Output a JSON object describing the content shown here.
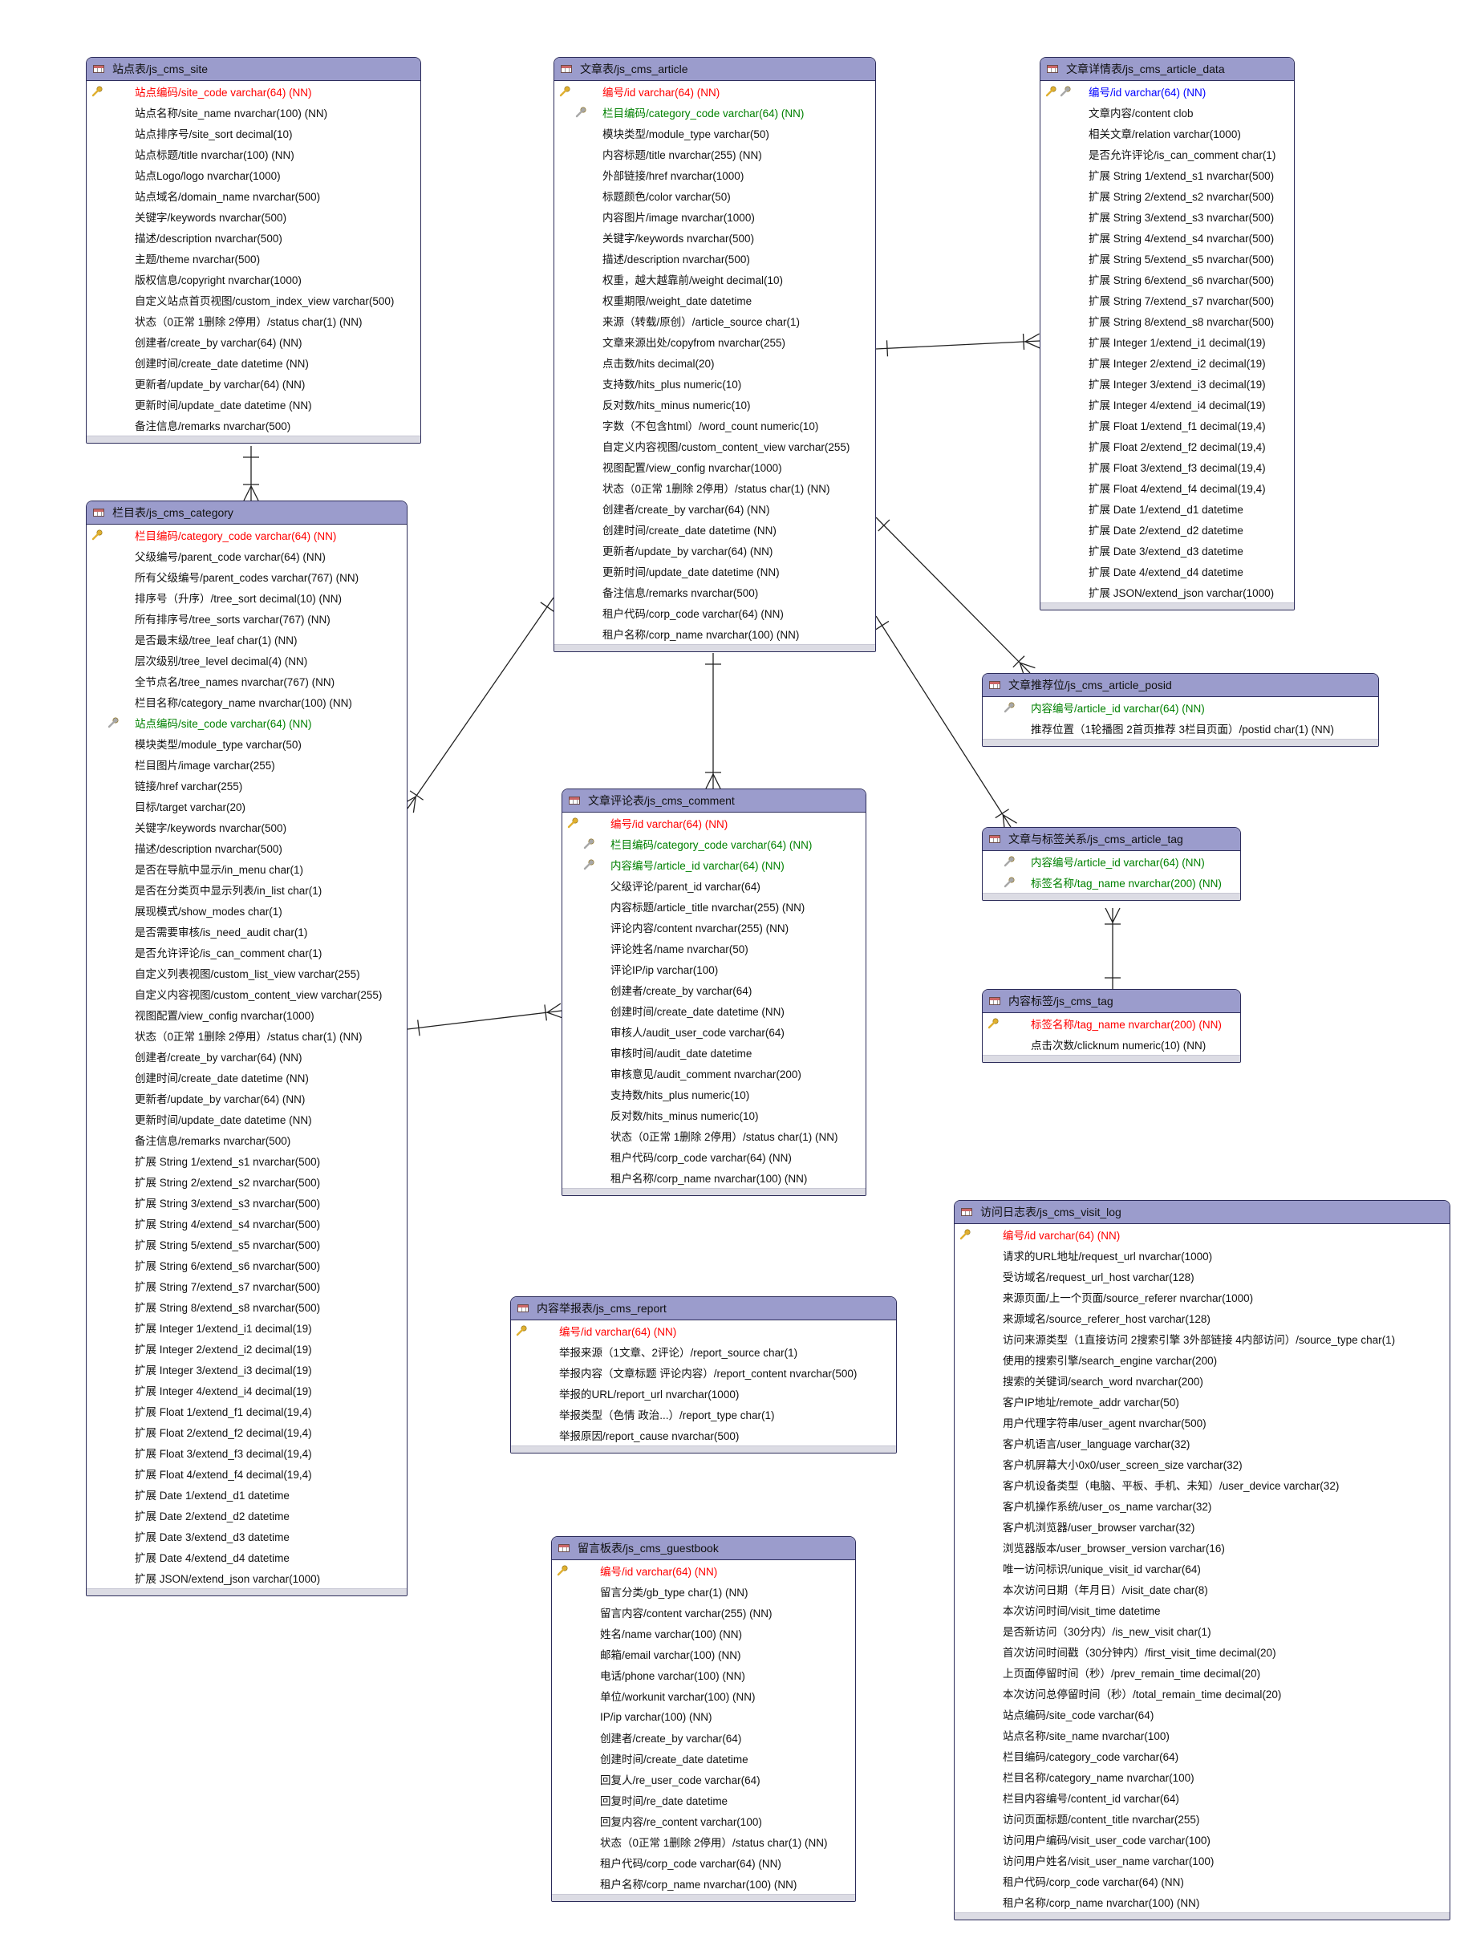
{
  "colors": {
    "header": "#9b9ccc",
    "pk": "#ff0000",
    "fk": "#008000",
    "pkfk": "#0000ff",
    "border": "#2c2c5a"
  },
  "tables": [
    {
      "id": "site",
      "title": "站点表/js_cms_site",
      "rows": [
        {
          "t": "站点编码/site_code varchar(64) (NN)",
          "k": "pk"
        },
        {
          "t": "站点名称/site_name nvarchar(100) (NN)"
        },
        {
          "t": "站点排序号/site_sort decimal(10)"
        },
        {
          "t": "站点标题/title nvarchar(100) (NN)"
        },
        {
          "t": "站点Logo/logo nvarchar(1000)"
        },
        {
          "t": "站点域名/domain_name nvarchar(500)"
        },
        {
          "t": "关键字/keywords nvarchar(500)"
        },
        {
          "t": "描述/description nvarchar(500)"
        },
        {
          "t": "主题/theme nvarchar(500)"
        },
        {
          "t": "版权信息/copyright nvarchar(1000)"
        },
        {
          "t": "自定义站点首页视图/custom_index_view varchar(500)"
        },
        {
          "t": "状态（0正常 1删除 2停用）/status char(1) (NN)"
        },
        {
          "t": "创建者/create_by varchar(64) (NN)"
        },
        {
          "t": "创建时间/create_date datetime (NN)"
        },
        {
          "t": "更新者/update_by varchar(64) (NN)"
        },
        {
          "t": "更新时间/update_date datetime (NN)"
        },
        {
          "t": "备注信息/remarks nvarchar(500)"
        }
      ]
    },
    {
      "id": "category",
      "title": "栏目表/js_cms_category",
      "rows": [
        {
          "t": "栏目编码/category_code varchar(64) (NN)",
          "k": "pk"
        },
        {
          "t": "父级编号/parent_code varchar(64) (NN)"
        },
        {
          "t": "所有父级编号/parent_codes varchar(767) (NN)"
        },
        {
          "t": "排序号（升序）/tree_sort decimal(10) (NN)"
        },
        {
          "t": "所有排序号/tree_sorts varchar(767) (NN)"
        },
        {
          "t": "是否最末级/tree_leaf char(1) (NN)"
        },
        {
          "t": "层次级别/tree_level decimal(4) (NN)"
        },
        {
          "t": "全节点名/tree_names nvarchar(767) (NN)"
        },
        {
          "t": "栏目名称/category_name nvarchar(100) (NN)"
        },
        {
          "t": "站点编码/site_code varchar(64) (NN)",
          "k": "fk"
        },
        {
          "t": "模块类型/module_type varchar(50)"
        },
        {
          "t": "栏目图片/image varchar(255)"
        },
        {
          "t": "链接/href varchar(255)"
        },
        {
          "t": "目标/target varchar(20)"
        },
        {
          "t": "关键字/keywords nvarchar(500)"
        },
        {
          "t": "描述/description nvarchar(500)"
        },
        {
          "t": "是否在导航中显示/in_menu char(1)"
        },
        {
          "t": "是否在分类页中显示列表/in_list char(1)"
        },
        {
          "t": "展现模式/show_modes char(1)"
        },
        {
          "t": "是否需要审核/is_need_audit char(1)"
        },
        {
          "t": "是否允许评论/is_can_comment char(1)"
        },
        {
          "t": "自定义列表视图/custom_list_view varchar(255)"
        },
        {
          "t": "自定义内容视图/custom_content_view varchar(255)"
        },
        {
          "t": "视图配置/view_config nvarchar(1000)"
        },
        {
          "t": "状态（0正常 1删除 2停用）/status char(1) (NN)"
        },
        {
          "t": "创建者/create_by varchar(64) (NN)"
        },
        {
          "t": "创建时间/create_date datetime (NN)"
        },
        {
          "t": "更新者/update_by varchar(64) (NN)"
        },
        {
          "t": "更新时间/update_date datetime (NN)"
        },
        {
          "t": "备注信息/remarks nvarchar(500)"
        },
        {
          "t": "扩展 String 1/extend_s1 nvarchar(500)"
        },
        {
          "t": "扩展 String 2/extend_s2 nvarchar(500)"
        },
        {
          "t": "扩展 String 3/extend_s3 nvarchar(500)"
        },
        {
          "t": "扩展 String 4/extend_s4 nvarchar(500)"
        },
        {
          "t": "扩展 String 5/extend_s5 nvarchar(500)"
        },
        {
          "t": "扩展 String 6/extend_s6 nvarchar(500)"
        },
        {
          "t": "扩展 String 7/extend_s7 nvarchar(500)"
        },
        {
          "t": "扩展 String 8/extend_s8 nvarchar(500)"
        },
        {
          "t": "扩展 Integer 1/extend_i1 decimal(19)"
        },
        {
          "t": "扩展 Integer 2/extend_i2 decimal(19)"
        },
        {
          "t": "扩展 Integer 3/extend_i3 decimal(19)"
        },
        {
          "t": "扩展 Integer 4/extend_i4 decimal(19)"
        },
        {
          "t": "扩展 Float 1/extend_f1 decimal(19,4)"
        },
        {
          "t": "扩展 Float 2/extend_f2 decimal(19,4)"
        },
        {
          "t": "扩展 Float 3/extend_f3 decimal(19,4)"
        },
        {
          "t": "扩展 Float 4/extend_f4 decimal(19,4)"
        },
        {
          "t": "扩展 Date 1/extend_d1 datetime"
        },
        {
          "t": "扩展 Date 2/extend_d2 datetime"
        },
        {
          "t": "扩展 Date 3/extend_d3 datetime"
        },
        {
          "t": "扩展 Date 4/extend_d4 datetime"
        },
        {
          "t": "扩展 JSON/extend_json varchar(1000)"
        }
      ]
    },
    {
      "id": "article",
      "title": "文章表/js_cms_article",
      "rows": [
        {
          "t": "编号/id varchar(64) (NN)",
          "k": "pk"
        },
        {
          "t": "栏目编码/category_code varchar(64) (NN)",
          "k": "fk"
        },
        {
          "t": "模块类型/module_type varchar(50)"
        },
        {
          "t": "内容标题/title nvarchar(255) (NN)"
        },
        {
          "t": "外部链接/href nvarchar(1000)"
        },
        {
          "t": "标题颜色/color varchar(50)"
        },
        {
          "t": "内容图片/image nvarchar(1000)"
        },
        {
          "t": "关键字/keywords nvarchar(500)"
        },
        {
          "t": "描述/description nvarchar(500)"
        },
        {
          "t": "权重，越大越靠前/weight decimal(10)"
        },
        {
          "t": "权重期限/weight_date datetime"
        },
        {
          "t": "来源（转载/原创）/article_source char(1)"
        },
        {
          "t": "文章来源出处/copyfrom nvarchar(255)"
        },
        {
          "t": "点击数/hits decimal(20)"
        },
        {
          "t": "支持数/hits_plus numeric(10)"
        },
        {
          "t": "反对数/hits_minus numeric(10)"
        },
        {
          "t": "字数（不包含html）/word_count numeric(10)"
        },
        {
          "t": "自定义内容视图/custom_content_view varchar(255)"
        },
        {
          "t": "视图配置/view_config nvarchar(1000)"
        },
        {
          "t": "状态（0正常 1删除 2停用）/status char(1) (NN)"
        },
        {
          "t": "创建者/create_by varchar(64) (NN)"
        },
        {
          "t": "创建时间/create_date datetime (NN)"
        },
        {
          "t": "更新者/update_by varchar(64) (NN)"
        },
        {
          "t": "更新时间/update_date datetime (NN)"
        },
        {
          "t": "备注信息/remarks nvarchar(500)"
        },
        {
          "t": "租户代码/corp_code varchar(64) (NN)"
        },
        {
          "t": "租户名称/corp_name nvarchar(100) (NN)"
        }
      ]
    },
    {
      "id": "article_data",
      "title": "文章详情表/js_cms_article_data",
      "rows": [
        {
          "t": "编号/id varchar(64) (NN)",
          "k": "pkfk"
        },
        {
          "t": "文章内容/content clob"
        },
        {
          "t": "相关文章/relation varchar(1000)"
        },
        {
          "t": "是否允许评论/is_can_comment char(1)"
        },
        {
          "t": "扩展 String 1/extend_s1 nvarchar(500)"
        },
        {
          "t": "扩展 String 2/extend_s2 nvarchar(500)"
        },
        {
          "t": "扩展 String 3/extend_s3 nvarchar(500)"
        },
        {
          "t": "扩展 String 4/extend_s4 nvarchar(500)"
        },
        {
          "t": "扩展 String 5/extend_s5 nvarchar(500)"
        },
        {
          "t": "扩展 String 6/extend_s6 nvarchar(500)"
        },
        {
          "t": "扩展 String 7/extend_s7 nvarchar(500)"
        },
        {
          "t": "扩展 String 8/extend_s8 nvarchar(500)"
        },
        {
          "t": "扩展 Integer 1/extend_i1 decimal(19)"
        },
        {
          "t": "扩展 Integer 2/extend_i2 decimal(19)"
        },
        {
          "t": "扩展 Integer 3/extend_i3 decimal(19)"
        },
        {
          "t": "扩展 Integer 4/extend_i4 decimal(19)"
        },
        {
          "t": "扩展 Float 1/extend_f1 decimal(19,4)"
        },
        {
          "t": "扩展 Float 2/extend_f2 decimal(19,4)"
        },
        {
          "t": "扩展 Float 3/extend_f3 decimal(19,4)"
        },
        {
          "t": "扩展 Float 4/extend_f4 decimal(19,4)"
        },
        {
          "t": "扩展 Date 1/extend_d1 datetime"
        },
        {
          "t": "扩展 Date 2/extend_d2 datetime"
        },
        {
          "t": "扩展 Date 3/extend_d3 datetime"
        },
        {
          "t": "扩展 Date 4/extend_d4 datetime"
        },
        {
          "t": "扩展 JSON/extend_json varchar(1000)"
        }
      ]
    },
    {
      "id": "article_posid",
      "title": "文章推荐位/js_cms_article_posid",
      "rows": [
        {
          "t": "内容编号/article_id varchar(64) (NN)",
          "k": "fk"
        },
        {
          "t": "推荐位置（1轮播图 2首页推荐 3栏目页面）/postid char(1) (NN)"
        }
      ]
    },
    {
      "id": "comment",
      "title": "文章评论表/js_cms_comment",
      "rows": [
        {
          "t": "编号/id varchar(64) (NN)",
          "k": "pk"
        },
        {
          "t": "栏目编码/category_code varchar(64) (NN)",
          "k": "fk"
        },
        {
          "t": "内容编号/article_id varchar(64) (NN)",
          "k": "fk"
        },
        {
          "t": "父级评论/parent_id varchar(64)"
        },
        {
          "t": "内容标题/article_title nvarchar(255) (NN)"
        },
        {
          "t": "评论内容/content nvarchar(255) (NN)"
        },
        {
          "t": "评论姓名/name nvarchar(50)"
        },
        {
          "t": "评论IP/ip varchar(100)"
        },
        {
          "t": "创建者/create_by varchar(64)"
        },
        {
          "t": "创建时间/create_date datetime (NN)"
        },
        {
          "t": "审核人/audit_user_code varchar(64)"
        },
        {
          "t": "审核时间/audit_date datetime"
        },
        {
          "t": "审核意见/audit_comment nvarchar(200)"
        },
        {
          "t": "支持数/hits_plus numeric(10)"
        },
        {
          "t": "反对数/hits_minus numeric(10)"
        },
        {
          "t": "状态（0正常 1删除 2停用）/status char(1) (NN)"
        },
        {
          "t": "租户代码/corp_code varchar(64) (NN)"
        },
        {
          "t": "租户名称/corp_name nvarchar(100) (NN)"
        }
      ]
    },
    {
      "id": "article_tag",
      "title": "文章与标签关系/js_cms_article_tag",
      "rows": [
        {
          "t": "内容编号/article_id varchar(64) (NN)",
          "k": "fk"
        },
        {
          "t": "标签名称/tag_name nvarchar(200) (NN)",
          "k": "fk"
        }
      ]
    },
    {
      "id": "tag",
      "title": "内容标签/js_cms_tag",
      "rows": [
        {
          "t": "标签名称/tag_name nvarchar(200) (NN)",
          "k": "pk"
        },
        {
          "t": "点击次数/clicknum numeric(10) (NN)"
        }
      ]
    },
    {
      "id": "report",
      "title": "内容举报表/js_cms_report",
      "rows": [
        {
          "t": "编号/id varchar(64) (NN)",
          "k": "pk"
        },
        {
          "t": "举报来源（1文章、2评论）/report_source char(1)"
        },
        {
          "t": "举报内容（文章标题 评论内容）/report_content nvarchar(500)"
        },
        {
          "t": "举报的URL/report_url nvarchar(1000)"
        },
        {
          "t": "举报类型（色情 政治...）/report_type char(1)"
        },
        {
          "t": "举报原因/report_cause nvarchar(500)"
        }
      ]
    },
    {
      "id": "visit_log",
      "title": "访问日志表/js_cms_visit_log",
      "rows": [
        {
          "t": "编号/id varchar(64) (NN)",
          "k": "pk"
        },
        {
          "t": "请求的URL地址/request_url nvarchar(1000)"
        },
        {
          "t": "受访域名/request_url_host varchar(128)"
        },
        {
          "t": "来源页面/上一个页面/source_referer nvarchar(1000)"
        },
        {
          "t": "来源域名/source_referer_host varchar(128)"
        },
        {
          "t": "访问来源类型（1直接访问 2搜索引擎 3外部链接 4内部访问）/source_type char(1)"
        },
        {
          "t": "使用的搜索引擎/search_engine varchar(200)"
        },
        {
          "t": "搜索的关键词/search_word nvarchar(200)"
        },
        {
          "t": "客户IP地址/remote_addr varchar(50)"
        },
        {
          "t": "用户代理字符串/user_agent nvarchar(500)"
        },
        {
          "t": "客户机语言/user_language varchar(32)"
        },
        {
          "t": "客户机屏幕大小0x0/user_screen_size varchar(32)"
        },
        {
          "t": "客户机设备类型（电脑、平板、手机、未知）/user_device varchar(32)"
        },
        {
          "t": "客户机操作系统/user_os_name varchar(32)"
        },
        {
          "t": "客户机浏览器/user_browser varchar(32)"
        },
        {
          "t": "浏览器版本/user_browser_version varchar(16)"
        },
        {
          "t": "唯一访问标识/unique_visit_id varchar(64)"
        },
        {
          "t": "本次访问日期（年月日）/visit_date char(8)"
        },
        {
          "t": "本次访问时间/visit_time datetime"
        },
        {
          "t": "是否新访问（30分内）/is_new_visit char(1)"
        },
        {
          "t": "首次访问时间戳（30分钟内）/first_visit_time decimal(20)"
        },
        {
          "t": "上页面停留时间（秒）/prev_remain_time decimal(20)"
        },
        {
          "t": "本次访问总停留时间（秒）/total_remain_time decimal(20)"
        },
        {
          "t": "站点编码/site_code varchar(64)"
        },
        {
          "t": "站点名称/site_name nvarchar(100)"
        },
        {
          "t": "栏目编码/category_code varchar(64)"
        },
        {
          "t": "栏目名称/category_name nvarchar(100)"
        },
        {
          "t": "栏目内容编号/content_id varchar(64)"
        },
        {
          "t": "访问页面标题/content_title nvarchar(255)"
        },
        {
          "t": "访问用户编码/visit_user_code varchar(100)"
        },
        {
          "t": "访问用户姓名/visit_user_name varchar(100)"
        },
        {
          "t": "租户代码/corp_code varchar(64) (NN)"
        },
        {
          "t": "租户名称/corp_name nvarchar(100) (NN)"
        }
      ]
    },
    {
      "id": "guestbook",
      "title": "留言板表/js_cms_guestbook",
      "rows": [
        {
          "t": "编号/id varchar(64) (NN)",
          "k": "pk"
        },
        {
          "t": "留言分类/gb_type char(1) (NN)"
        },
        {
          "t": "留言内容/content varchar(255) (NN)"
        },
        {
          "t": "姓名/name varchar(100) (NN)"
        },
        {
          "t": "邮箱/email varchar(100) (NN)"
        },
        {
          "t": "电话/phone varchar(100) (NN)"
        },
        {
          "t": "单位/workunit varchar(100) (NN)"
        },
        {
          "t": "IP/ip varchar(100) (NN)"
        },
        {
          "t": "创建者/create_by varchar(64)"
        },
        {
          "t": "创建时间/create_date datetime"
        },
        {
          "t": "回复人/re_user_code varchar(64)"
        },
        {
          "t": "回复时间/re_date datetime"
        },
        {
          "t": "回复内容/re_content varchar(100)"
        },
        {
          "t": "状态（0正常 1删除 2停用）/status char(1) (NN)"
        },
        {
          "t": "租户代码/corp_code varchar(64) (NN)"
        },
        {
          "t": "租户名称/corp_name nvarchar(100) (NN)"
        }
      ]
    }
  ]
}
